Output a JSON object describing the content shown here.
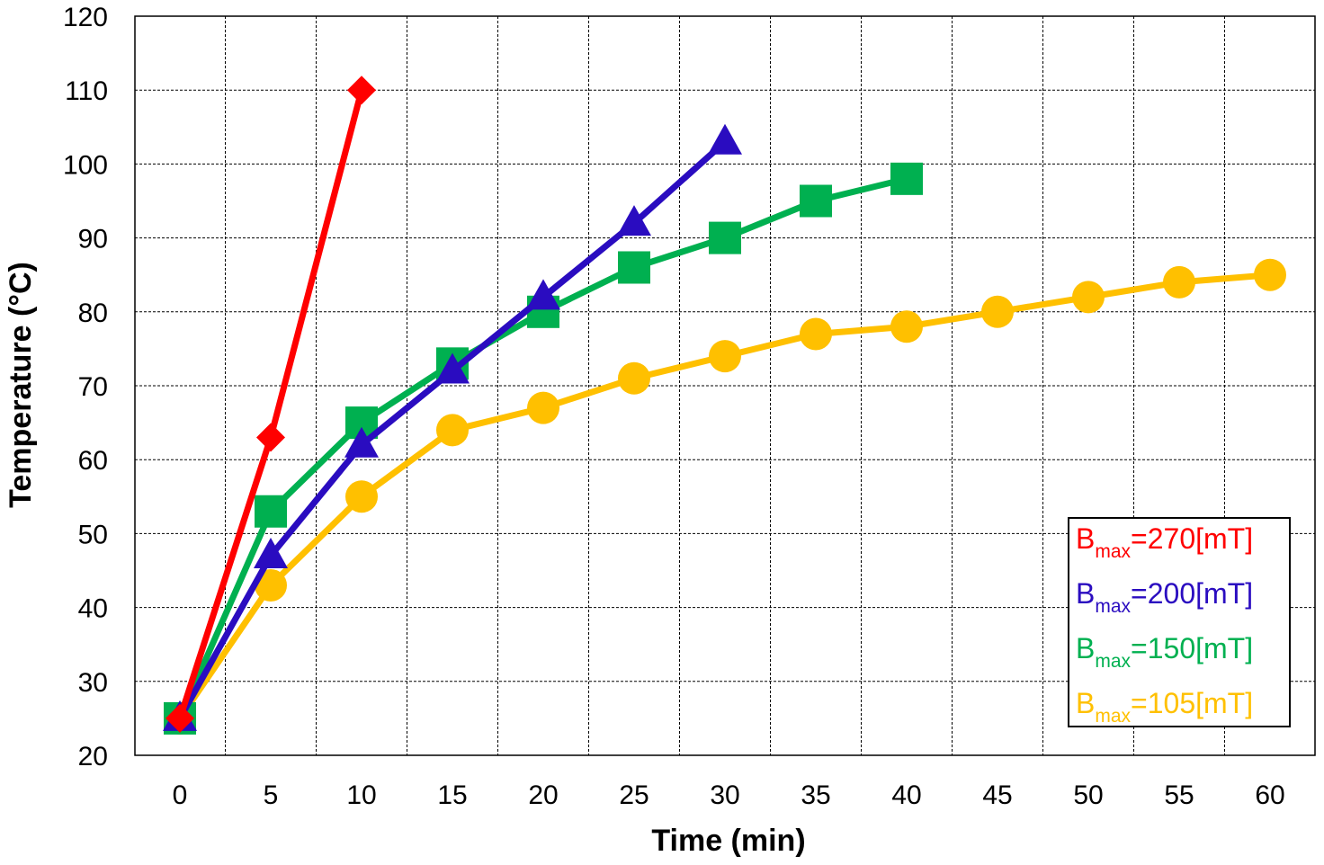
{
  "chart_data": {
    "type": "line",
    "title": "",
    "xlabel": "Time (min)",
    "ylabel": "Temperature (°C)",
    "xlim": [
      0,
      60
    ],
    "ylim": [
      20,
      120
    ],
    "xticks": [
      "0",
      "5",
      "10",
      "15",
      "20",
      "25",
      "30",
      "35",
      "40",
      "45",
      "50",
      "55",
      "60"
    ],
    "yticks": [
      "20",
      "30",
      "40",
      "50",
      "60",
      "70",
      "80",
      "90",
      "100",
      "110",
      "120"
    ],
    "grid": true,
    "legend_position": "bottom-right",
    "series": [
      {
        "name": "Bmax=270[mT]",
        "label_main": "B",
        "label_sub": "max",
        "label_rest": "=270[mT]",
        "color": "#ff0000",
        "marker": "diamond",
        "x": [
          0,
          5,
          10
        ],
        "values": [
          25,
          63,
          110
        ]
      },
      {
        "name": "Bmax=200[mT]",
        "label_main": "B",
        "label_sub": "max",
        "label_rest": "=200[mT]",
        "color": "#2a0cc0",
        "marker": "triangle",
        "x": [
          0,
          5,
          10,
          15,
          20,
          25,
          30
        ],
        "values": [
          25,
          47,
          62,
          72,
          82,
          92,
          103
        ]
      },
      {
        "name": "Bmax=150[mT]",
        "label_main": "B",
        "label_sub": "max",
        "label_rest": "=150[mT]",
        "color": "#00b050",
        "marker": "square",
        "x": [
          0,
          5,
          10,
          15,
          20,
          25,
          30,
          35,
          40
        ],
        "values": [
          25,
          53,
          65,
          73,
          80,
          86,
          90,
          95,
          98
        ]
      },
      {
        "name": "Bmax=105[mT]",
        "label_main": "B",
        "label_sub": "max",
        "label_rest": "=105[mT]",
        "color": "#ffc000",
        "marker": "circle",
        "x": [
          0,
          5,
          10,
          15,
          20,
          25,
          30,
          35,
          40,
          45,
          50,
          55,
          60
        ],
        "values": [
          25,
          43,
          55,
          64,
          67,
          71,
          74,
          77,
          78,
          80,
          82,
          84,
          85
        ]
      }
    ]
  }
}
